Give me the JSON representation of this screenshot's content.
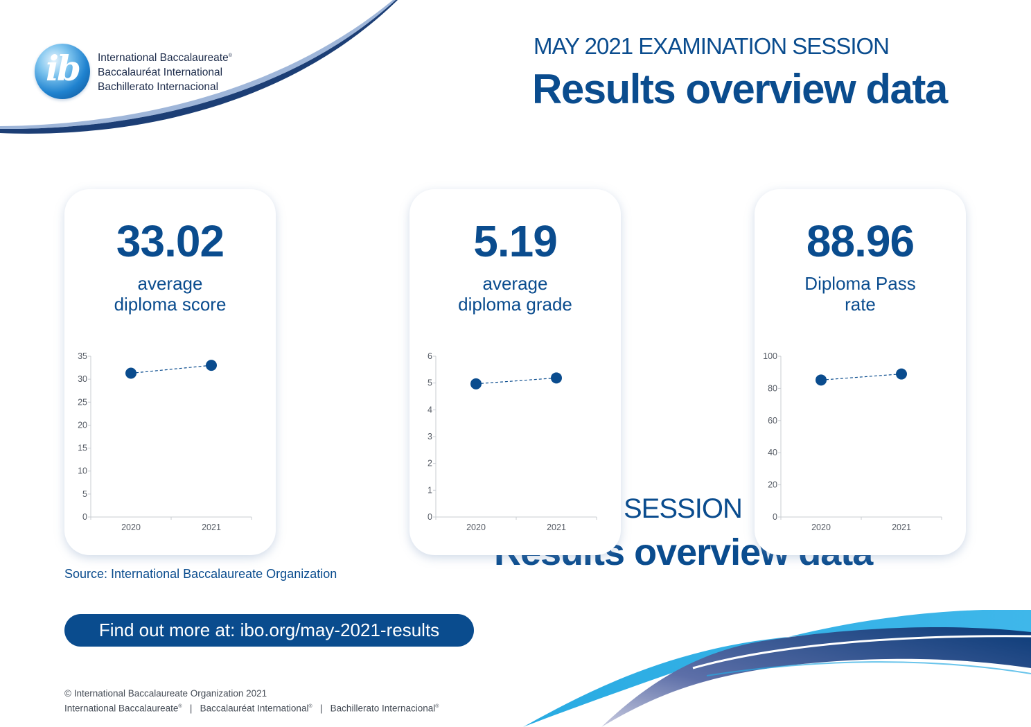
{
  "brand": {
    "names": [
      "International Baccalaureate",
      "Baccalauréat International",
      "Bachillerato Internacional"
    ],
    "registered_mark": "®",
    "logo_text": "ib",
    "colors": {
      "primary": "#0a4c8e",
      "light_blue": "#29abe2",
      "ghost_text": "#0a4c8e"
    }
  },
  "header": {
    "session": "MAY 2021 EXAMINATION SESSION",
    "title": "Results overview data"
  },
  "ghost_header": {
    "session": "SESSION",
    "title": "Results overview data"
  },
  "cards": [
    {
      "value": "33.02",
      "label_line1": "average",
      "label_line2": "diploma score"
    },
    {
      "value": "5.19",
      "label_line1": "average",
      "label_line2": "diploma grade"
    },
    {
      "value": "88.96",
      "label_line1": "Diploma Pass",
      "label_line2": "rate"
    }
  ],
  "chart_data": [
    {
      "type": "line",
      "categories": [
        "2020",
        "2021"
      ],
      "series": [
        {
          "values": [
            31.3,
            33.02
          ]
        }
      ],
      "yticks": [
        0,
        5,
        10,
        15,
        20,
        25,
        30,
        35
      ],
      "ylim": [
        0,
        35
      ],
      "line_style": "dashed",
      "grid": false
    },
    {
      "type": "line",
      "categories": [
        "2020",
        "2021"
      ],
      "series": [
        {
          "values": [
            4.97,
            5.19
          ]
        }
      ],
      "yticks": [
        0,
        1,
        2,
        3,
        4,
        5,
        6
      ],
      "ylim": [
        0,
        6
      ],
      "line_style": "dashed",
      "grid": false
    },
    {
      "type": "line",
      "categories": [
        "2020",
        "2021"
      ],
      "series": [
        {
          "values": [
            85.2,
            88.96
          ]
        }
      ],
      "yticks": [
        0,
        20,
        40,
        60,
        80,
        100
      ],
      "ylim": [
        0,
        100
      ],
      "line_style": "dashed",
      "grid": false
    }
  ],
  "source": "Source: International Baccalaureate Organization",
  "cta": {
    "label": "Find out more at: ibo.org/may-2021-results"
  },
  "footer": {
    "copyright": "© International Baccalaureate Organization 2021",
    "names": [
      "International Baccalaureate",
      "Baccalauréat International",
      "Bachillerato Internacional"
    ],
    "separator": "|"
  }
}
